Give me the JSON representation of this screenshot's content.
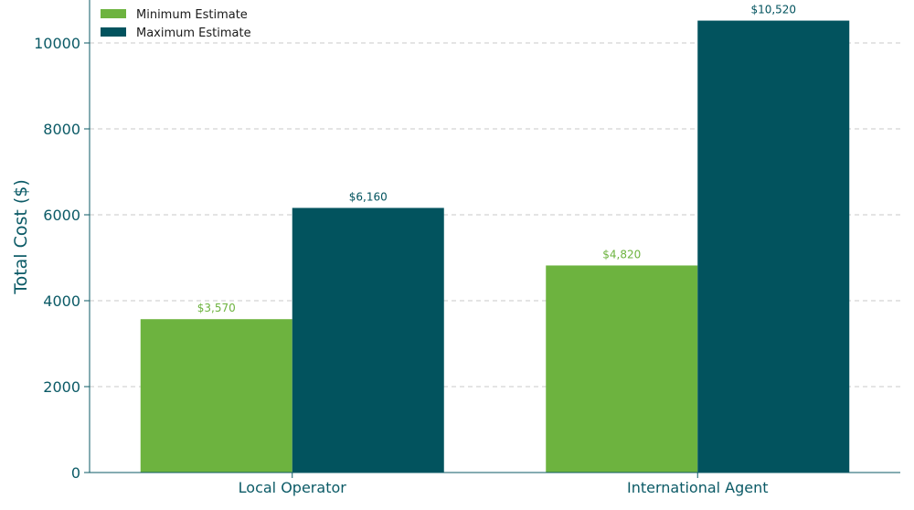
{
  "chart_data": {
    "type": "bar",
    "categories": [
      "Local Operator",
      "International Agent"
    ],
    "series": [
      {
        "name": "Minimum Estimate",
        "values": [
          3570,
          4820
        ],
        "color": "#6db33f",
        "labels": [
          "$3,570",
          "$4,820"
        ]
      },
      {
        "name": "Maximum Estimate",
        "values": [
          6160,
          10520
        ],
        "color": "#02535e",
        "labels": [
          "$6,160",
          "$10,520"
        ]
      }
    ],
    "title": "",
    "xlabel": "",
    "ylabel": "Total Cost ($)",
    "ylim": [
      0,
      11000
    ],
    "yticks": [
      0,
      2000,
      4000,
      6000,
      8000,
      10000
    ],
    "grid": true,
    "legend_position": "top-left",
    "axis_color": "#0b5a66",
    "grid_color": "#c8c8c8"
  }
}
